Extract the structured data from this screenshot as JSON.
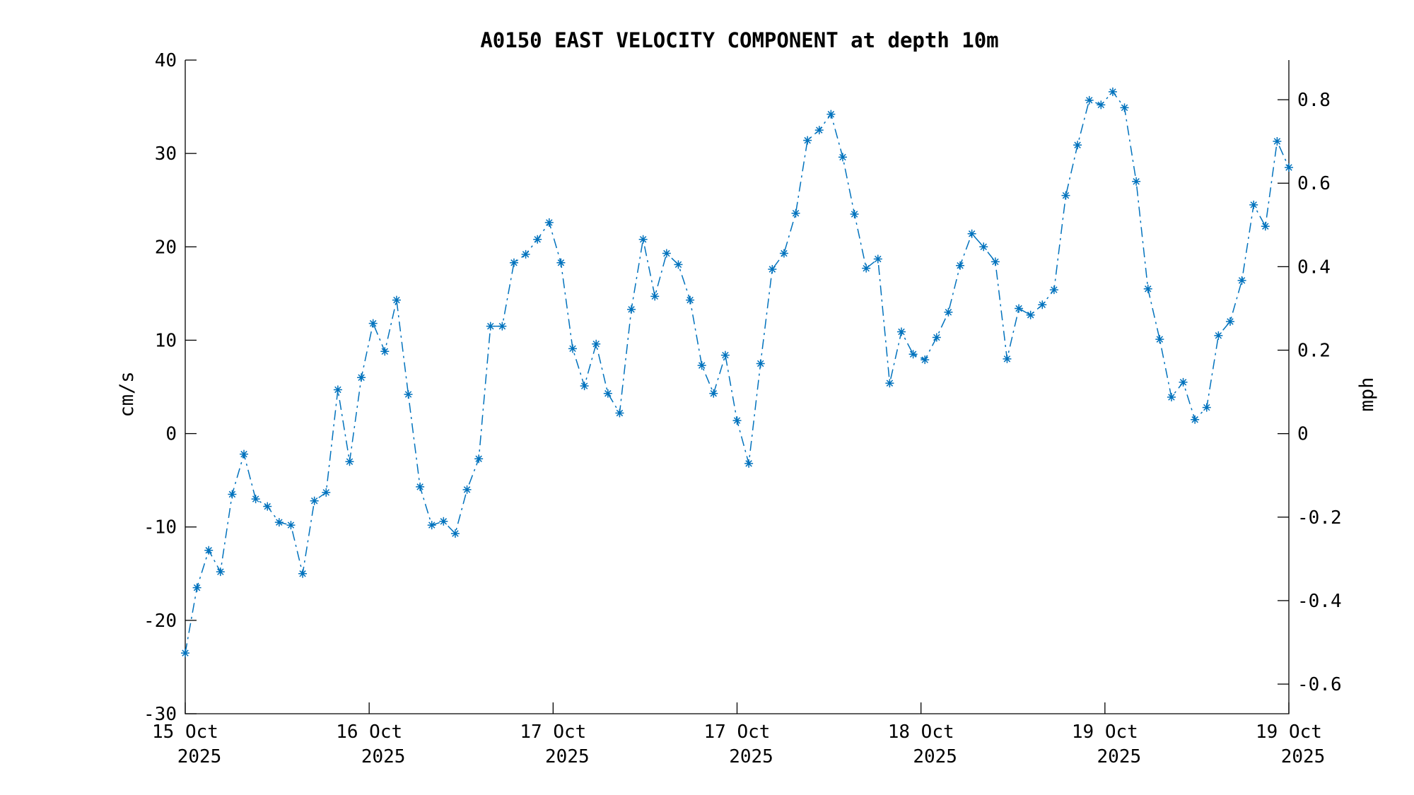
{
  "chart_data": {
    "type": "line",
    "title": "A0150 EAST VELOCITY COMPONENT at depth 10m",
    "ylabel": "cm/s",
    "y2label": "mph",
    "ylim": [
      -30,
      40
    ],
    "y2lim": [
      -0.671,
      0.895
    ],
    "yticks": [
      "-30",
      "-20",
      "-10",
      "0",
      "10",
      "20",
      "30",
      "40"
    ],
    "y2ticks": [
      "-0.6",
      "-0.4",
      "-0.2",
      "0",
      "0.2",
      "0.4",
      "0.6",
      "0.8"
    ],
    "xticks": [
      {
        "line1": "15 Oct",
        "line2": "2025"
      },
      {
        "line1": "16 Oct",
        "line2": "2025"
      },
      {
        "line1": "17 Oct",
        "line2": "2025"
      },
      {
        "line1": "17 Oct",
        "line2": "2025"
      },
      {
        "line1": "18 Oct",
        "line2": "2025"
      },
      {
        "line1": "19 Oct",
        "line2": "2025"
      },
      {
        "line1": "19 Oct",
        "line2": "2025"
      }
    ],
    "grid": false,
    "line_style": "dash-dot",
    "marker": "asterisk",
    "color": "#0072bd",
    "series": [
      {
        "values": [
          -23.5,
          -16.5,
          -12.5,
          -14.8,
          -6.5,
          -2.2,
          -7.0,
          -7.8,
          -9.5,
          -9.8,
          -15.0,
          -7.2,
          -6.3,
          4.7,
          -3.0,
          6.0,
          11.8,
          8.8,
          14.3,
          4.2,
          -5.7,
          -9.8,
          -9.4,
          -10.7,
          -6.0,
          -2.7,
          11.5,
          11.5,
          18.3,
          19.2,
          20.8,
          22.6,
          18.3,
          9.1,
          5.1,
          9.6,
          4.3,
          2.2,
          13.3,
          20.8,
          14.7,
          19.3,
          18.1,
          14.3,
          7.3,
          4.3,
          8.4,
          1.4,
          -3.2,
          7.5,
          17.6,
          19.3,
          23.6,
          31.4,
          32.5,
          34.2,
          29.6,
          23.5,
          17.7,
          18.7,
          5.4,
          10.9,
          8.5,
          7.9,
          10.3,
          13.0,
          18.0,
          21.4,
          20.0,
          18.4,
          8.0,
          13.4,
          12.7,
          13.8,
          15.4,
          25.5,
          30.9,
          35.7,
          35.2,
          36.6,
          34.9,
          27.0,
          15.5,
          10.1,
          3.9,
          5.5,
          1.5,
          2.8,
          10.5,
          12.0,
          16.4,
          24.5,
          22.2,
          31.3,
          28.5
        ]
      }
    ]
  }
}
